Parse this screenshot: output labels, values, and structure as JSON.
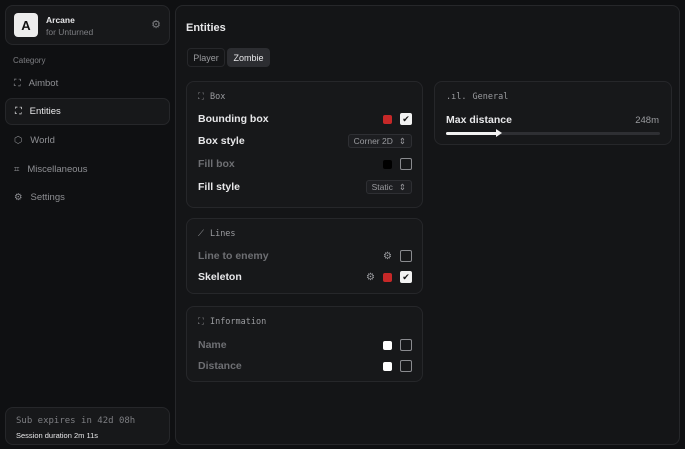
{
  "app": {
    "logo_letter": "A",
    "name": "Arcane",
    "subtitle": "for Unturned"
  },
  "sidebar": {
    "category_label": "Category",
    "items": [
      {
        "label": "Aimbot",
        "icon": "crosshair-icon"
      },
      {
        "label": "Entities",
        "icon": "scan-face-icon",
        "active": true
      },
      {
        "label": "World",
        "icon": "globe-icon"
      },
      {
        "label": "Miscellaneous",
        "icon": "grid-icon"
      },
      {
        "label": "Settings",
        "icon": "gear-icon"
      }
    ]
  },
  "footer": {
    "sub": "Sub expires in 42d 08h",
    "session": "Session duration 2m 11s"
  },
  "main": {
    "title": "Entities",
    "tabs": [
      {
        "label": "Player"
      },
      {
        "label": "Zombie",
        "active": true
      }
    ]
  },
  "box": {
    "title": "Box",
    "bounding_box": {
      "label": "Bounding box",
      "color": "#c62828",
      "checked": true
    },
    "box_style": {
      "label": "Box style",
      "value": "Corner 2D"
    },
    "fill_box": {
      "label": "Fill box",
      "color": "#000000",
      "checked": false
    },
    "fill_style": {
      "label": "Fill style",
      "value": "Static"
    }
  },
  "general": {
    "title": "General",
    "max_distance": {
      "label": "Max distance",
      "value": "248m",
      "fraction": 0.248
    }
  },
  "lines": {
    "title": "Lines",
    "line_to_enemy": {
      "label": "Line to enemy",
      "checked": false
    },
    "skeleton": {
      "label": "Skeleton",
      "color": "#c62828",
      "checked": true
    }
  },
  "information": {
    "title": "Information",
    "name": {
      "label": "Name",
      "color": "#ffffff",
      "checked": false
    },
    "distance": {
      "label": "Distance",
      "color": "#ffffff",
      "checked": false
    }
  }
}
